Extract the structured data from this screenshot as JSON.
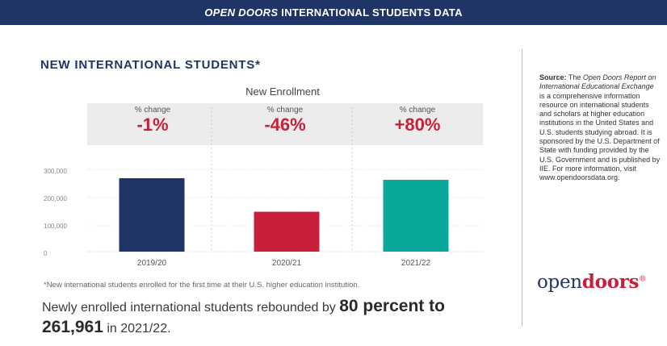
{
  "header": {
    "title_brand": "OPEN DOORS",
    "title_rest": " INTERNATIONAL STUDENTS DATA"
  },
  "section_title": "NEW INTERNATIONAL STUDENTS*",
  "chart_data": {
    "type": "bar",
    "title": "New Enrollment",
    "categories": [
      "2019/20",
      "2020/21",
      "2021/22"
    ],
    "values": [
      267712,
      145528,
      261961
    ],
    "colors": [
      "#1f3566",
      "#c8203a",
      "#0aa89a"
    ],
    "y_ticks": [
      0,
      100000,
      200000,
      300000
    ],
    "y_tick_labels": [
      "0",
      "100,000",
      "200,000",
      "300,000"
    ],
    "ylim": [
      0,
      300000
    ],
    "pct_change_label": "% change",
    "pct_changes": [
      "-1%",
      "-46%",
      "+80%"
    ]
  },
  "footnote": "*New international students enrolled for the first time at their U.S. higher education institution.",
  "summary": {
    "part1": "Newly enrolled international students rebounded by ",
    "highlight1": "80 percent to",
    "highlight2": "261,961",
    "part2": " in 2021/22."
  },
  "source": {
    "label": "Source:",
    "the": " The ",
    "report_name": "Open Doors Report on International Educational Exchange",
    "description": " is a comprehensive information resource on international students and scholars at higher education institutions in the United States and U.S. students studying abroad. It is sponsored by the U.S. Department of State with funding provided by the U.S. Government and is published by IIE. For more information, visit www.opendoorsdata.org."
  },
  "logo": {
    "part1": "open",
    "part2": "doors",
    "mark": "®"
  },
  "colors": {
    "navy": "#1f3566",
    "red": "#c8203a",
    "teal": "#0aa89a"
  }
}
